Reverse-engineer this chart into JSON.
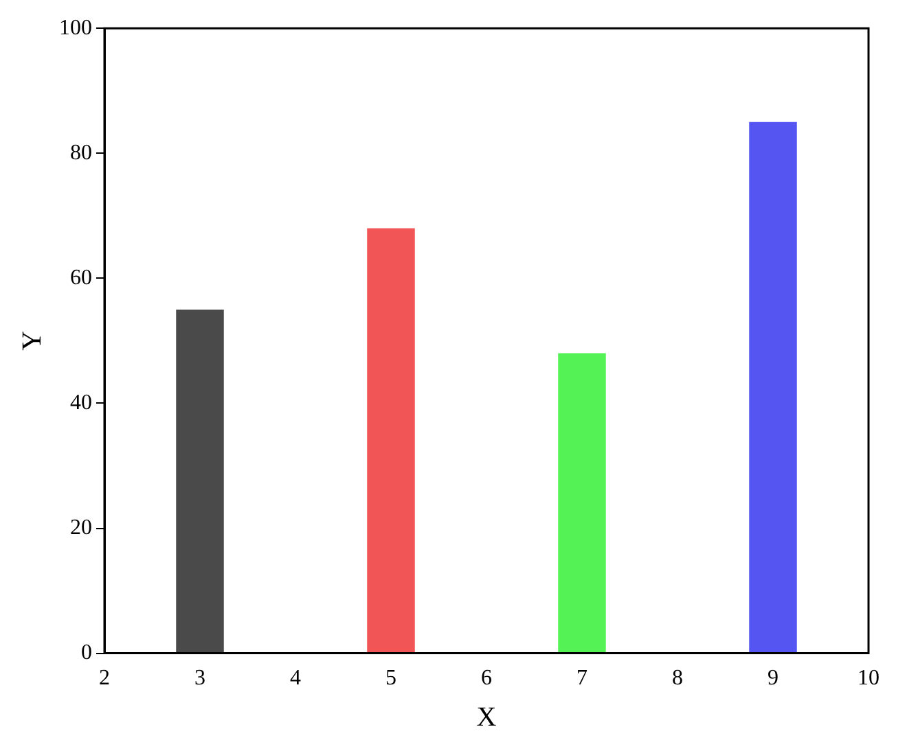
{
  "chart_data": {
    "type": "bar",
    "xlabel": "X",
    "ylabel": "Y",
    "x": [
      3,
      5,
      7,
      9
    ],
    "values": [
      55,
      68,
      48,
      85
    ],
    "colors": [
      "#4a4a4a",
      "#f25555",
      "#55f255",
      "#5555f2"
    ],
    "xlim": [
      2,
      10
    ],
    "xticks": [
      2,
      3,
      4,
      5,
      6,
      7,
      8,
      9,
      10
    ],
    "ylim": [
      0,
      100
    ],
    "yticks": [
      0,
      20,
      40,
      60,
      80,
      100
    ],
    "grid": false
  }
}
